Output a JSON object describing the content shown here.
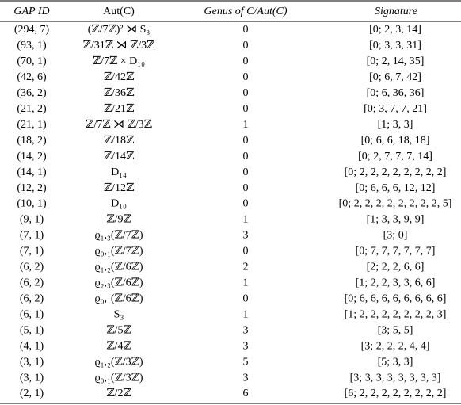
{
  "table": {
    "header": [
      "GAP ID",
      "Aut(C)",
      "Genus of C/Aut(C)",
      "Signature"
    ],
    "rows": [
      [
        "(294, 7)",
        "(ℤ/7ℤ)² ⋊ S₃",
        0,
        "[0; 2, 3, 14]"
      ],
      [
        "(93, 1)",
        "ℤ/31ℤ ⋊ ℤ/3ℤ",
        0,
        "[0; 3, 3, 31]"
      ],
      [
        "(70, 1)",
        "ℤ/7ℤ × D₁₀",
        0,
        "[0; 2, 14, 35]"
      ],
      [
        "(42, 6)",
        "ℤ/42ℤ",
        0,
        "[0; 6, 7, 42]"
      ],
      [
        "(36, 2)",
        "ℤ/36ℤ",
        0,
        "[0; 6, 36, 36]"
      ],
      [
        "(21, 2)",
        "ℤ/21ℤ",
        0,
        "[0; 3, 7, 7, 21]"
      ],
      [
        "(21, 1)",
        "ℤ/7ℤ ⋊ ℤ/3ℤ",
        1,
        "[1; 3, 3]"
      ],
      [
        "(18, 2)",
        "ℤ/18ℤ",
        0,
        "[0; 6, 6, 18, 18]"
      ],
      [
        "(14, 2)",
        "ℤ/14ℤ",
        0,
        "[0; 2, 7, 7, 7, 14]"
      ],
      [
        "(14, 1)",
        "D₁₄",
        0,
        "[0; 2, 2, 2, 2, 2, 2, 2, 2]"
      ],
      [
        "(12, 2)",
        "ℤ/12ℤ",
        0,
        "[0; 6, 6, 6, 12, 12]"
      ],
      [
        "(10, 1)",
        "D₁₀",
        0,
        "[0; 2, 2, 2, 2, 2, 2, 2, 2, 5]"
      ],
      [
        "(9, 1)",
        "ℤ/9ℤ",
        1,
        "[1; 3, 3, 9, 9]"
      ],
      [
        "(7, 1)",
        "ϱ₁,₃(ℤ/7ℤ)",
        3,
        "[3; 0]"
      ],
      [
        "(7, 1)",
        "ϱ₀,₁(ℤ/7ℤ)",
        0,
        "[0; 7, 7, 7, 7, 7, 7]"
      ],
      [
        "(6, 2)",
        "ϱ₁,₂(ℤ/6ℤ)",
        2,
        "[2; 2, 2, 6, 6]"
      ],
      [
        "(6, 2)",
        "ϱ₂,₃(ℤ/6ℤ)",
        1,
        "[1; 2, 2, 3, 3, 6, 6]"
      ],
      [
        "(6, 2)",
        "ϱ₀,₁(ℤ/6ℤ)",
        0,
        "[0; 6, 6, 6, 6, 6, 6, 6, 6]"
      ],
      [
        "(6, 1)",
        "S₃",
        1,
        "[1; 2, 2, 2, 2, 2, 2, 2, 3]"
      ],
      [
        "(5, 1)",
        "ℤ/5ℤ",
        3,
        "[3; 5, 5]"
      ],
      [
        "(4, 1)",
        "ℤ/4ℤ",
        3,
        "[3; 2, 2, 2, 4, 4]"
      ],
      [
        "(3, 1)",
        "ϱ₁,₂(ℤ/3ℤ)",
        5,
        "[5; 3, 3]"
      ],
      [
        "(3, 1)",
        "ϱ₀,₁(ℤ/3ℤ)",
        3,
        "[3; 3, 3, 3, 3, 3, 3, 3]"
      ],
      [
        "(2, 1)",
        "ℤ/2ℤ",
        6,
        "[6; 2, 2, 2, 2, 2, 2, 2, 2]"
      ]
    ]
  }
}
